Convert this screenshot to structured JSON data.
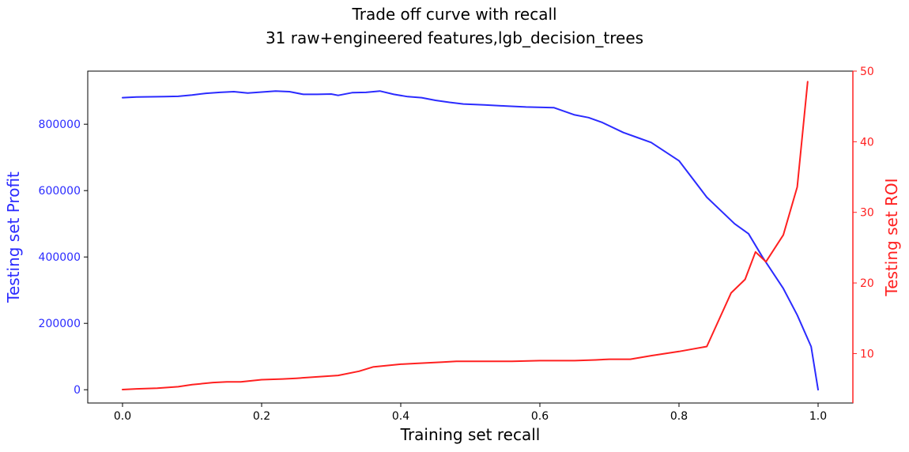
{
  "chart_data": {
    "type": "line",
    "title": "Trade off curve with recall",
    "subtitle": "31 raw+engineered features,lgb_decision_trees",
    "xlabel": "Training set recall",
    "ylabel_left": "Testing set Profit",
    "ylabel_right": "Testing set ROI",
    "xlim": [
      -0.05,
      1.05
    ],
    "ylim_left": [
      -40000,
      960000
    ],
    "ylim_right": [
      3,
      50
    ],
    "grid": false,
    "x_ticks": [
      0.0,
      0.2,
      0.4,
      0.6,
      0.8,
      1.0
    ],
    "x_tick_labels": [
      "0.0",
      "0.2",
      "0.4",
      "0.6",
      "0.8",
      "1.0"
    ],
    "y_left_ticks": [
      0,
      200000,
      400000,
      600000,
      800000
    ],
    "y_left_tick_labels": [
      "0",
      "200000",
      "400000",
      "600000",
      "800000"
    ],
    "y_right_ticks": [
      10,
      20,
      30,
      40,
      50
    ],
    "y_right_tick_labels": [
      "10",
      "20",
      "30",
      "40",
      "50"
    ],
    "colors": {
      "profit": "#2b2bff",
      "roi": "#ff2020",
      "axis": "#000000"
    },
    "series": [
      {
        "axis": "left",
        "color": "#2b2bff",
        "x": [
          0.0,
          0.02,
          0.06,
          0.08,
          0.1,
          0.12,
          0.14,
          0.16,
          0.18,
          0.2,
          0.22,
          0.24,
          0.26,
          0.28,
          0.3,
          0.31,
          0.33,
          0.35,
          0.37,
          0.39,
          0.41,
          0.43,
          0.45,
          0.47,
          0.49,
          0.52,
          0.55,
          0.58,
          0.62,
          0.65,
          0.67,
          0.69,
          0.72,
          0.74,
          0.76,
          0.8,
          0.84,
          0.88,
          0.9,
          0.92,
          0.95,
          0.97,
          0.99,
          1.0
        ],
        "y": [
          880000,
          882000,
          883000,
          884000,
          888000,
          893000,
          896000,
          898000,
          894000,
          897000,
          900000,
          898000,
          890000,
          890000,
          891000,
          887000,
          895000,
          896000,
          900000,
          890000,
          883000,
          880000,
          872000,
          866000,
          861000,
          858000,
          855000,
          852000,
          850000,
          828000,
          820000,
          805000,
          775000,
          760000,
          745000,
          690000,
          580000,
          500000,
          470000,
          400000,
          305000,
          225000,
          130000,
          0
        ]
      },
      {
        "axis": "right",
        "color": "#ff2020",
        "x": [
          0.0,
          0.02,
          0.05,
          0.08,
          0.1,
          0.13,
          0.15,
          0.17,
          0.2,
          0.23,
          0.25,
          0.28,
          0.31,
          0.34,
          0.36,
          0.38,
          0.4,
          0.42,
          0.44,
          0.46,
          0.48,
          0.52,
          0.56,
          0.6,
          0.62,
          0.65,
          0.68,
          0.7,
          0.73,
          0.76,
          0.8,
          0.84,
          0.875,
          0.895,
          0.91,
          0.925,
          0.95,
          0.97,
          0.985
        ],
        "y": [
          4.9,
          5.0,
          5.1,
          5.3,
          5.6,
          5.9,
          6.0,
          6.0,
          6.3,
          6.4,
          6.5,
          6.7,
          6.9,
          7.5,
          8.1,
          8.3,
          8.5,
          8.6,
          8.7,
          8.8,
          8.9,
          8.9,
          8.9,
          9.0,
          9.0,
          9.0,
          9.1,
          9.2,
          9.2,
          9.7,
          10.3,
          11.0,
          18.6,
          20.5,
          24.4,
          23.0,
          26.8,
          33.6,
          48.5
        ]
      }
    ]
  }
}
